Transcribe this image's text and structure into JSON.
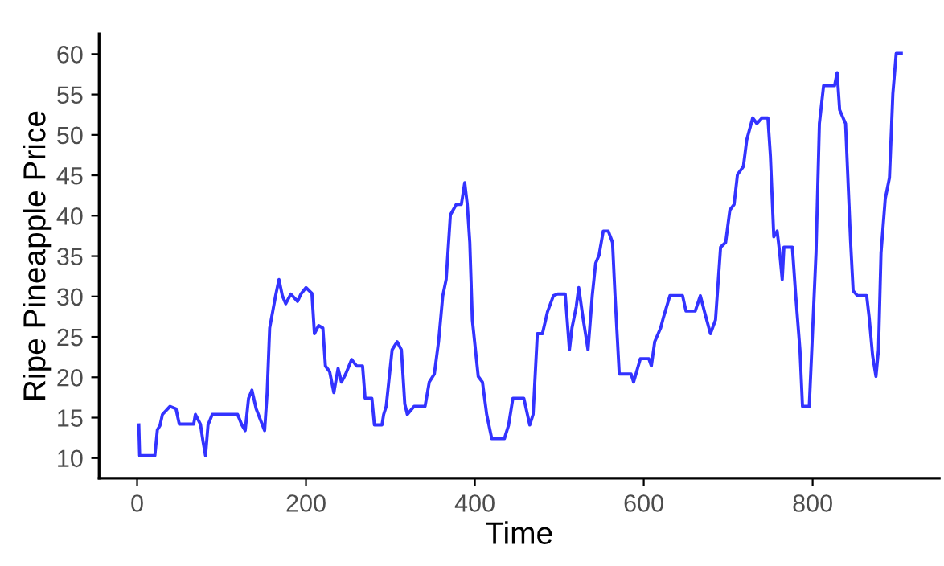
{
  "chart_data": {
    "type": "line",
    "xlabel": "Time",
    "ylabel": "Ripe Pineapple Price",
    "xlim": [
      -45,
      950
    ],
    "ylim": [
      7.5,
      62.5
    ],
    "xticks": [
      0,
      200,
      400,
      600,
      800
    ],
    "yticks": [
      10,
      15,
      20,
      25,
      30,
      35,
      40,
      45,
      50,
      55,
      60
    ],
    "grid": false,
    "line_style": "solid",
    "marker": "none",
    "series": [
      {
        "color": "#3333ff",
        "x": [
          2,
          3,
          21,
          24,
          27,
          30,
          39,
          46,
          50,
          67,
          69,
          75,
          78,
          81,
          84,
          89,
          97,
          119,
          124,
          128,
          132,
          136,
          141,
          151,
          154,
          157,
          164,
          168,
          172,
          176,
          182,
          190,
          194,
          200,
          207,
          210,
          215,
          220,
          223,
          228,
          233,
          238,
          242,
          247,
          254,
          260,
          267,
          270,
          278,
          281,
          290,
          292,
          295,
          302,
          308,
          313,
          317,
          320,
          328,
          341,
          346,
          352,
          357,
          362,
          366,
          371,
          378,
          384,
          388,
          391,
          394,
          397,
          404,
          409,
          414,
          420,
          435,
          440,
          445,
          458,
          465,
          469,
          474,
          480,
          486,
          493,
          498,
          507,
          512,
          515,
          520,
          523,
          528,
          534,
          539,
          543,
          547,
          552,
          558,
          563,
          566,
          571,
          585,
          588,
          596,
          606,
          609,
          613,
          620,
          623,
          631,
          646,
          650,
          661,
          667,
          672,
          679,
          685,
          691,
          697,
          702,
          707,
          711,
          718,
          722,
          729,
          734,
          740,
          747,
          750,
          754,
          758,
          761,
          764,
          766,
          776,
          780,
          785,
          788,
          796,
          799,
          804,
          808,
          813,
          826,
          829,
          832,
          839,
          845,
          848,
          853,
          864,
          867,
          871,
          875,
          878,
          881,
          886,
          891,
          895,
          899,
          905
        ],
        "values": [
          14.1,
          10.3,
          10.3,
          13.5,
          14,
          15.4,
          16.4,
          16.1,
          14.2,
          14.2,
          15.4,
          14.2,
          12.1,
          10.3,
          14.1,
          15.4,
          15.4,
          15.4,
          14.1,
          13.4,
          17.4,
          18.4,
          16.1,
          13.4,
          18.1,
          26.1,
          30.1,
          32.1,
          30.1,
          29.1,
          30.3,
          29.4,
          30.3,
          31.1,
          30.4,
          25.4,
          26.4,
          26.1,
          21.4,
          20.7,
          18.1,
          21.1,
          19.4,
          20.4,
          22.2,
          21.4,
          21.4,
          17.4,
          17.4,
          14.1,
          14.1,
          15.4,
          16.4,
          23.4,
          24.4,
          23.4,
          16.7,
          15.4,
          16.4,
          16.4,
          19.4,
          20.4,
          24.4,
          30.1,
          32.1,
          40.1,
          41.4,
          41.4,
          44.1,
          41.4,
          36.7,
          27.1,
          20.1,
          19.4,
          15.4,
          12.4,
          12.4,
          14.1,
          17.4,
          17.4,
          14.1,
          15.4,
          25.4,
          25.4,
          28.1,
          30.1,
          30.3,
          30.3,
          23.4,
          26.1,
          28.7,
          31.1,
          27.4,
          23.4,
          30.1,
          34.1,
          35.1,
          38.1,
          38.1,
          36.7,
          30.1,
          20.4,
          20.4,
          19.4,
          22.3,
          22.3,
          21.4,
          24.4,
          26.1,
          27.3,
          30.1,
          30.1,
          28.2,
          28.2,
          30.1,
          28.1,
          25.4,
          27.1,
          36.1,
          36.7,
          40.7,
          41.4,
          45.1,
          46.1,
          49.4,
          52.1,
          51.4,
          52.1,
          52.1,
          47.4,
          37.4,
          38.1,
          35.4,
          32.1,
          36.1,
          36.1,
          30.1,
          23.4,
          16.4,
          16.4,
          23.4,
          35.4,
          51.4,
          56.1,
          56.1,
          57.7,
          53.1,
          51.4,
          36.7,
          30.7,
          30.1,
          30.1,
          27.4,
          22.7,
          20.1,
          23.4,
          35.4,
          42.1,
          44.7,
          55.1,
          60.1,
          60.1
        ]
      }
    ]
  }
}
